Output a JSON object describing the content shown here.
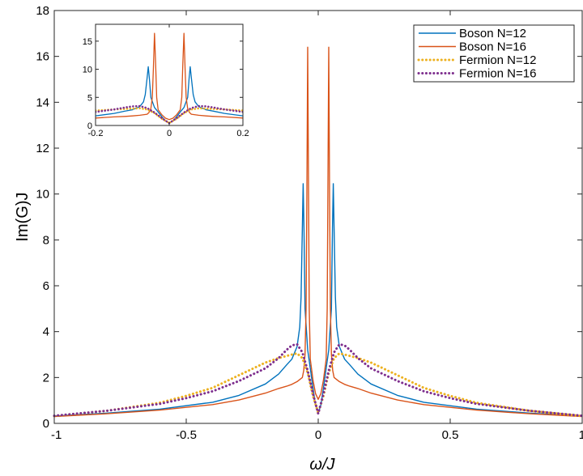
{
  "chart_data": {
    "type": "line",
    "title": "",
    "xlabel": "ω/J",
    "ylabel": "Im(G)J",
    "xlim": [
      -1,
      1
    ],
    "ylim": [
      0,
      18
    ],
    "xticks": [
      -1,
      -0.5,
      0,
      0.5,
      1
    ],
    "xtick_labels": [
      "-1",
      "-0.5",
      "0",
      "0.5",
      "1"
    ],
    "yticks": [
      0,
      2,
      4,
      6,
      8,
      10,
      12,
      14,
      16,
      18
    ],
    "ytick_labels": [
      "0",
      "2",
      "4",
      "6",
      "8",
      "10",
      "12",
      "14",
      "16",
      "18"
    ],
    "grid": false,
    "legend_position": "top-right",
    "series": [
      {
        "name": "Boson N=12",
        "color": "#0072BD",
        "style": "solid",
        "points": [
          [
            -1.0,
            0.32
          ],
          [
            -0.8,
            0.45
          ],
          [
            -0.6,
            0.62
          ],
          [
            -0.4,
            0.92
          ],
          [
            -0.3,
            1.22
          ],
          [
            -0.2,
            1.72
          ],
          [
            -0.15,
            2.15
          ],
          [
            -0.12,
            2.55
          ],
          [
            -0.1,
            2.8
          ],
          [
            -0.08,
            3.35
          ],
          [
            -0.07,
            4.2
          ],
          [
            -0.065,
            5.5
          ],
          [
            -0.06,
            8.5
          ],
          [
            -0.057,
            10.45
          ],
          [
            -0.054,
            8.5
          ],
          [
            -0.05,
            5.0
          ],
          [
            -0.04,
            3.2
          ],
          [
            -0.03,
            2.4
          ],
          [
            -0.02,
            1.55
          ],
          [
            -0.01,
            0.8
          ],
          [
            0.0,
            0.45
          ],
          [
            0.01,
            0.8
          ],
          [
            0.02,
            1.55
          ],
          [
            0.03,
            2.4
          ],
          [
            0.04,
            3.2
          ],
          [
            0.05,
            5.0
          ],
          [
            0.054,
            8.5
          ],
          [
            0.057,
            10.45
          ],
          [
            0.06,
            8.5
          ],
          [
            0.065,
            5.5
          ],
          [
            0.07,
            4.2
          ],
          [
            0.08,
            3.35
          ],
          [
            0.1,
            2.8
          ],
          [
            0.12,
            2.55
          ],
          [
            0.15,
            2.15
          ],
          [
            0.2,
            1.72
          ],
          [
            0.3,
            1.22
          ],
          [
            0.4,
            0.92
          ],
          [
            0.6,
            0.62
          ],
          [
            0.8,
            0.45
          ],
          [
            1.0,
            0.32
          ]
        ]
      },
      {
        "name": "Boson N=16",
        "color": "#D95319",
        "style": "solid",
        "points": [
          [
            -1.0,
            0.3
          ],
          [
            -0.8,
            0.42
          ],
          [
            -0.6,
            0.58
          ],
          [
            -0.4,
            0.82
          ],
          [
            -0.3,
            1.02
          ],
          [
            -0.2,
            1.32
          ],
          [
            -0.15,
            1.52
          ],
          [
            -0.12,
            1.62
          ],
          [
            -0.1,
            1.7
          ],
          [
            -0.08,
            1.82
          ],
          [
            -0.06,
            2.0
          ],
          [
            -0.055,
            2.3
          ],
          [
            -0.05,
            3.0
          ],
          [
            -0.046,
            5.0
          ],
          [
            -0.043,
            10.0
          ],
          [
            -0.04,
            16.4
          ],
          [
            -0.037,
            11.0
          ],
          [
            -0.034,
            5.0
          ],
          [
            -0.03,
            2.8
          ],
          [
            -0.02,
            1.9
          ],
          [
            -0.01,
            1.3
          ],
          [
            0.0,
            1.05
          ],
          [
            0.01,
            1.3
          ],
          [
            0.02,
            1.9
          ],
          [
            0.03,
            2.8
          ],
          [
            0.034,
            5.0
          ],
          [
            0.037,
            11.0
          ],
          [
            0.04,
            16.4
          ],
          [
            0.043,
            10.0
          ],
          [
            0.046,
            5.0
          ],
          [
            0.05,
            3.0
          ],
          [
            0.055,
            2.3
          ],
          [
            0.06,
            2.0
          ],
          [
            0.08,
            1.82
          ],
          [
            0.1,
            1.7
          ],
          [
            0.12,
            1.62
          ],
          [
            0.15,
            1.52
          ],
          [
            0.2,
            1.32
          ],
          [
            0.3,
            1.02
          ],
          [
            0.4,
            0.82
          ],
          [
            0.6,
            0.58
          ],
          [
            0.8,
            0.42
          ],
          [
            1.0,
            0.3
          ]
        ]
      },
      {
        "name": "Fermion N=12",
        "color": "#EDB120",
        "style": "dotted",
        "points": [
          [
            -1.0,
            0.32
          ],
          [
            -0.8,
            0.55
          ],
          [
            -0.6,
            0.9
          ],
          [
            -0.5,
            1.2
          ],
          [
            -0.4,
            1.55
          ],
          [
            -0.3,
            2.1
          ],
          [
            -0.2,
            2.65
          ],
          [
            -0.15,
            2.85
          ],
          [
            -0.1,
            3.0
          ],
          [
            -0.08,
            3.05
          ],
          [
            -0.06,
            2.85
          ],
          [
            -0.04,
            2.2
          ],
          [
            -0.02,
            1.2
          ],
          [
            0.0,
            0.45
          ],
          [
            0.02,
            1.2
          ],
          [
            0.04,
            2.2
          ],
          [
            0.06,
            2.85
          ],
          [
            0.08,
            3.05
          ],
          [
            0.1,
            3.0
          ],
          [
            0.15,
            2.85
          ],
          [
            0.2,
            2.65
          ],
          [
            0.3,
            2.1
          ],
          [
            0.4,
            1.55
          ],
          [
            0.5,
            1.2
          ],
          [
            0.6,
            0.9
          ],
          [
            0.8,
            0.55
          ],
          [
            1.0,
            0.32
          ]
        ]
      },
      {
        "name": "Fermion N=16",
        "color": "#7E2F8E",
        "style": "dotted",
        "points": [
          [
            -1.0,
            0.33
          ],
          [
            -0.8,
            0.55
          ],
          [
            -0.6,
            0.85
          ],
          [
            -0.5,
            1.1
          ],
          [
            -0.4,
            1.4
          ],
          [
            -0.3,
            1.85
          ],
          [
            -0.2,
            2.4
          ],
          [
            -0.15,
            2.85
          ],
          [
            -0.12,
            3.2
          ],
          [
            -0.1,
            3.4
          ],
          [
            -0.08,
            3.45
          ],
          [
            -0.06,
            3.1
          ],
          [
            -0.04,
            2.3
          ],
          [
            -0.02,
            1.3
          ],
          [
            0.0,
            0.42
          ],
          [
            0.02,
            1.3
          ],
          [
            0.04,
            2.3
          ],
          [
            0.06,
            3.1
          ],
          [
            0.08,
            3.45
          ],
          [
            0.1,
            3.4
          ],
          [
            0.12,
            3.2
          ],
          [
            0.15,
            2.85
          ],
          [
            0.2,
            2.4
          ],
          [
            0.3,
            1.85
          ],
          [
            0.4,
            1.4
          ],
          [
            0.5,
            1.1
          ],
          [
            0.6,
            0.85
          ],
          [
            0.8,
            0.55
          ],
          [
            1.0,
            0.33
          ]
        ]
      }
    ],
    "inset": {
      "xlim": [
        -0.2,
        0.2
      ],
      "ylim": [
        0,
        18
      ],
      "xticks": [
        -0.2,
        0,
        0.2
      ],
      "xtick_labels": [
        "-0.2",
        "0",
        "0.2"
      ],
      "yticks": [
        0,
        5,
        10,
        15
      ],
      "ytick_labels": [
        "0",
        "5",
        "10",
        "15"
      ],
      "grid": false
    }
  }
}
